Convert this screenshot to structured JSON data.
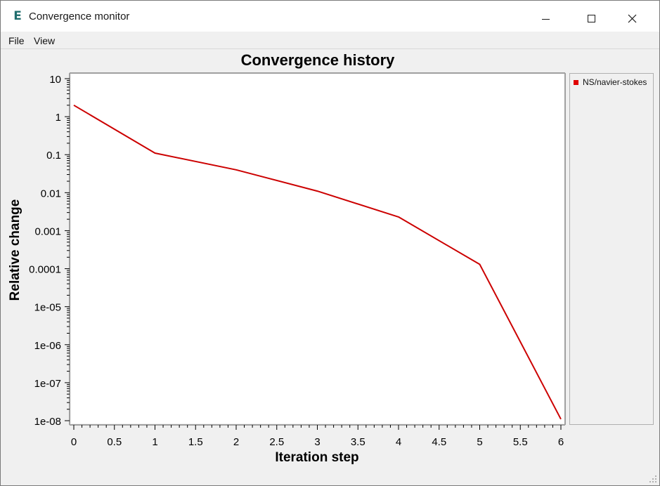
{
  "window": {
    "title": "Convergence monitor",
    "icon": "E"
  },
  "menu": {
    "items": [
      "File",
      "View"
    ]
  },
  "legend": {
    "entries": [
      {
        "label": "NS/navier-stokes",
        "color": "#e00000"
      }
    ]
  },
  "chart_data": {
    "type": "line",
    "title": "Convergence history",
    "xlabel": "Iteration step",
    "ylabel": "Relative change",
    "xlim": [
      0,
      6
    ],
    "ylim": [
      1e-08,
      10
    ],
    "yscale": "log",
    "xticks": [
      0,
      0.5,
      1,
      1.5,
      2,
      2.5,
      3,
      3.5,
      4,
      4.5,
      5,
      5.5,
      6
    ],
    "xtick_labels": [
      "0",
      "0.5",
      "1",
      "1.5",
      "2",
      "2.5",
      "3",
      "3.5",
      "4",
      "4.5",
      "5",
      "5.5",
      "6"
    ],
    "yticks": [
      10,
      1,
      0.1,
      0.01,
      0.001,
      0.0001,
      1e-05,
      1e-06,
      1e-07,
      1e-08
    ],
    "ytick_labels": [
      "10",
      "1",
      "0.1",
      "0.01",
      "0.001",
      "0.0001",
      "1e-05",
      "1e-06",
      "1e-07",
      "1e-08"
    ],
    "grid": false,
    "legend_position": "right",
    "series": [
      {
        "name": "NS/navier-stokes",
        "color": "#cc0000",
        "x": [
          0,
          1,
          2,
          3,
          4,
          5,
          6
        ],
        "y": [
          2,
          0.11,
          0.04,
          0.011,
          0.0023,
          0.00013,
          1.1e-08
        ]
      }
    ]
  }
}
